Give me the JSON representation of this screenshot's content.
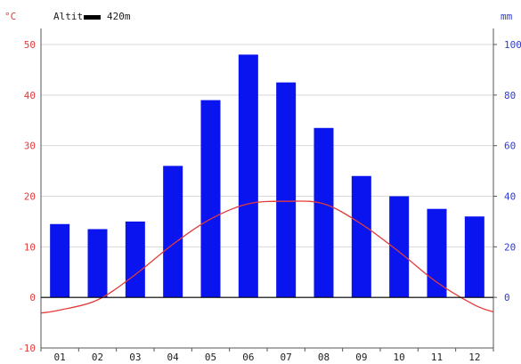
{
  "header": {
    "left_unit": "°C",
    "right_unit": "mm",
    "altitude_label": "Altit",
    "altitude_value": "420m"
  },
  "colors": {
    "temperature": "#e23b3b",
    "precipitation": "#0a14ee",
    "grid": "#d8d8d8",
    "axis": "#555555"
  },
  "chart_data": {
    "type": "bar",
    "categories": [
      "01",
      "02",
      "03",
      "04",
      "05",
      "06",
      "07",
      "08",
      "09",
      "10",
      "11",
      "12"
    ],
    "ylim_left": [
      -10,
      50
    ],
    "ylim_right": [
      0,
      100
    ],
    "left_ticks": [
      "-10",
      "0",
      "10",
      "20",
      "30",
      "40",
      "50"
    ],
    "right_ticks": [
      "0",
      "20",
      "40",
      "60",
      "80",
      "100"
    ],
    "grid": true,
    "series": [
      {
        "type": "bar",
        "axis": "right",
        "values": [
          29,
          27,
          30,
          52,
          78,
          96,
          85,
          67,
          48,
          40,
          35,
          32
        ]
      },
      {
        "type": "line",
        "axis": "left",
        "values": [
          -2.5,
          -0.5,
          4.5,
          10.5,
          15.5,
          18.5,
          19.0,
          18.5,
          14.5,
          9.0,
          3.0,
          -1.5
        ]
      }
    ]
  }
}
